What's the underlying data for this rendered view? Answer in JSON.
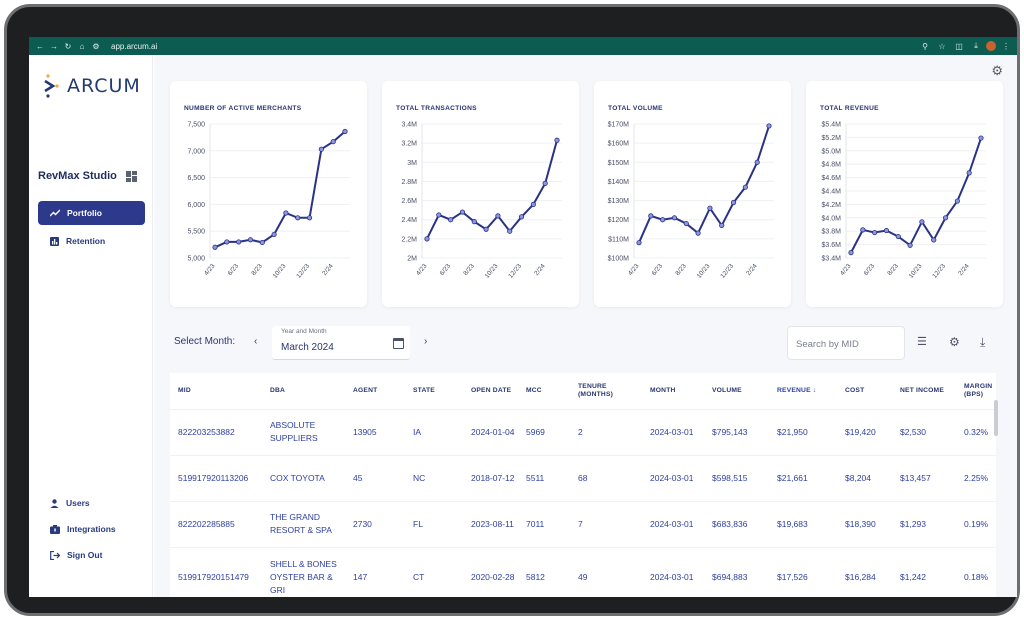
{
  "browser": {
    "url": "app.arcum.ai"
  },
  "brand": {
    "logo_text": "ARCUM",
    "accent": "#2d3a8c",
    "line_color": "#2a3285"
  },
  "sidebar": {
    "studio_title": "RevMax Studio",
    "nav": [
      {
        "label": "Portfolio",
        "icon": "trend-icon",
        "active": true
      },
      {
        "label": "Retention",
        "icon": "bar-chart-icon",
        "active": false
      }
    ],
    "bottom": [
      {
        "label": "Users",
        "icon": "user-icon"
      },
      {
        "label": "Integrations",
        "icon": "integrations-icon"
      },
      {
        "label": "Sign Out",
        "icon": "sign-out-icon"
      }
    ]
  },
  "controls": {
    "select_month_label": "Select Month:",
    "year_month_label": "Year and Month",
    "year_month_value": "March 2024",
    "search_placeholder": "Search by MID"
  },
  "chart_data": [
    {
      "type": "line",
      "title": "NUMBER OF ACTIVE MERCHANTS",
      "x": [
        "4/23",
        "5/23",
        "6/23",
        "7/23",
        "8/23",
        "9/23",
        "10/23",
        "11/23",
        "12/23",
        "1/24",
        "2/24",
        "3/24"
      ],
      "x_tick_labels": [
        "4/23",
        "6/23",
        "8/23",
        "10/23",
        "12/23",
        "2/24"
      ],
      "values": [
        5200,
        5300,
        5300,
        5340,
        5290,
        5440,
        5840,
        5750,
        5750,
        7030,
        7170,
        7360
      ],
      "ylim": [
        5000,
        7500
      ],
      "y_ticks": [
        "5,000",
        "5,500",
        "6,000",
        "6,500",
        "7,000",
        "7,500"
      ]
    },
    {
      "type": "line",
      "title": "TOTAL TRANSACTIONS",
      "x": [
        "4/23",
        "5/23",
        "6/23",
        "7/23",
        "8/23",
        "9/23",
        "10/23",
        "11/23",
        "12/23",
        "1/24",
        "2/24",
        "3/24"
      ],
      "x_tick_labels": [
        "4/23",
        "6/23",
        "8/23",
        "10/23",
        "12/23",
        "2/24"
      ],
      "values": [
        2.2,
        2.45,
        2.4,
        2.48,
        2.38,
        2.3,
        2.44,
        2.28,
        2.43,
        2.56,
        2.78,
        3.23
      ],
      "ylim": [
        2.0,
        3.4
      ],
      "y_ticks": [
        "2M",
        "2.2M",
        "2.4M",
        "2.6M",
        "2.8M",
        "3M",
        "3.2M",
        "3.4M"
      ]
    },
    {
      "type": "line",
      "title": "TOTAL VOLUME",
      "x": [
        "4/23",
        "5/23",
        "6/23",
        "7/23",
        "8/23",
        "9/23",
        "10/23",
        "11/23",
        "12/23",
        "1/24",
        "2/24",
        "3/24"
      ],
      "x_tick_labels": [
        "4/23",
        "6/23",
        "8/23",
        "10/23",
        "12/23",
        "2/24"
      ],
      "values": [
        108,
        122,
        120,
        121,
        118,
        113,
        126,
        117,
        129,
        137,
        150,
        169
      ],
      "ylim": [
        100,
        170
      ],
      "y_ticks": [
        "$100M",
        "$110M",
        "$120M",
        "$130M",
        "$140M",
        "$150M",
        "$160M",
        "$170M"
      ]
    },
    {
      "type": "line",
      "title": "TOTAL REVENUE",
      "x": [
        "4/23",
        "5/23",
        "6/23",
        "7/23",
        "8/23",
        "9/23",
        "10/23",
        "11/23",
        "12/23",
        "1/24",
        "2/24",
        "3/24"
      ],
      "x_tick_labels": [
        "4/23",
        "6/23",
        "8/23",
        "10/23",
        "12/23",
        "2/24"
      ],
      "values": [
        3.48,
        3.82,
        3.78,
        3.81,
        3.72,
        3.59,
        3.94,
        3.67,
        4.0,
        4.25,
        4.67,
        5.19
      ],
      "ylim": [
        3.4,
        5.4
      ],
      "y_ticks": [
        "$3.4M",
        "$3.6M",
        "$3.8M",
        "$4.0M",
        "$4.2M",
        "$4.4M",
        "$4.6M",
        "$4.8M",
        "$5.0M",
        "$5.2M",
        "$5.4M"
      ]
    }
  ],
  "table": {
    "columns": [
      "MID",
      "DBA",
      "AGENT",
      "STATE",
      "OPEN DATE",
      "MCC",
      "TENURE (MONTHS)",
      "MONTH",
      "VOLUME",
      "REVENUE ↓",
      "COST",
      "NET INCOME",
      "MARGIN (BPS)"
    ],
    "rows": [
      [
        "822203253882",
        "ABSOLUTE SUPPLIERS",
        "13905",
        "IA",
        "2024-01-04",
        "5969",
        "2",
        "2024-03-01",
        "$795,143",
        "$21,950",
        "$19,420",
        "$2,530",
        "0.32%"
      ],
      [
        "519917920113206",
        "COX TOYOTA",
        "45",
        "NC",
        "2018-07-12",
        "5511",
        "68",
        "2024-03-01",
        "$598,515",
        "$21,661",
        "$8,204",
        "$13,457",
        "2.25%"
      ],
      [
        "822202285885",
        "THE GRAND RESORT & SPA",
        "2730",
        "FL",
        "2023-08-11",
        "7011",
        "7",
        "2024-03-01",
        "$683,836",
        "$19,683",
        "$18,390",
        "$1,293",
        "0.19%"
      ],
      [
        "519917920151479",
        "SHELL & BONES OYSTER BAR & GRI",
        "147",
        "CT",
        "2020-02-28",
        "5812",
        "49",
        "2024-03-01",
        "$694,883",
        "$17,526",
        "$16,284",
        "$1,242",
        "0.18%"
      ]
    ]
  }
}
